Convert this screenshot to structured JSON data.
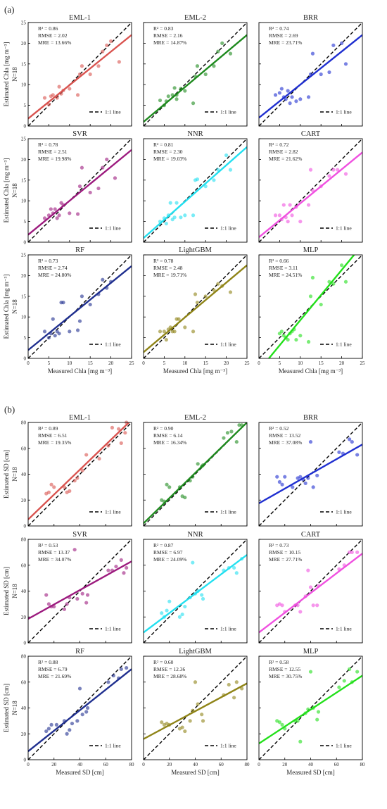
{
  "figure": {
    "panel_a_label": "(a)",
    "panel_b_label": "(b)",
    "n_label": "N=18",
    "legend_label": "1:1 line"
  },
  "panels": [
    {
      "id": "a",
      "xlabel": "Measured Chla [mg m⁻³]",
      "ylabel": "Estimated Chla [mg m⁻³]",
      "xlim": [
        0,
        25
      ],
      "ylim": [
        0,
        25
      ],
      "ticks": [
        0,
        5,
        10,
        15,
        20,
        25
      ]
    },
    {
      "id": "b",
      "xlabel": "Measured SD [cm]",
      "ylabel": "Estimated SD [cm]",
      "xlim": [
        0,
        80
      ],
      "ylim": [
        0,
        80
      ],
      "ticks": [
        0,
        20,
        40,
        60,
        80
      ]
    }
  ],
  "chart_data": [
    {
      "panel": "a",
      "type": "scatter",
      "title": "EML-1",
      "color": "#d9534f",
      "stats": [
        "R² = 0.86",
        "RMSE = 2.02",
        "MRE = 13.66%"
      ],
      "fit": [
        [
          0,
          1.8
        ],
        [
          25,
          22.0
        ]
      ],
      "x": [
        4,
        5,
        5.5,
        6,
        7,
        7.5,
        8,
        8.5,
        10,
        12,
        12.5,
        13,
        15,
        17,
        18,
        19,
        20,
        22
      ],
      "y": [
        6.8,
        5.2,
        7.2,
        7.5,
        6.8,
        9.5,
        7.8,
        8.6,
        9.0,
        7.5,
        12.5,
        14.5,
        12.5,
        14.5,
        18.0,
        19.5,
        20.5,
        15.5
      ]
    },
    {
      "panel": "a",
      "type": "scatter",
      "title": "EML-2",
      "color": "#1e8a1e",
      "stats": [
        "R² = 0.83",
        "RMSE = 2.16",
        "MRE = 14.87%"
      ],
      "fit": [
        [
          0,
          1.0
        ],
        [
          25,
          22.0
        ]
      ],
      "x": [
        4,
        5,
        5.5,
        6,
        7,
        7.5,
        8,
        8,
        9,
        10,
        12,
        12.5,
        13,
        15,
        17,
        18,
        19,
        21
      ],
      "y": [
        6.2,
        5.0,
        6.0,
        7.2,
        7.5,
        9.2,
        7.5,
        6.5,
        9.0,
        8.5,
        5.5,
        12.0,
        14.5,
        12.5,
        14.5,
        18.0,
        20.0,
        17.5
      ]
    },
    {
      "panel": "a",
      "type": "scatter",
      "title": "BRR",
      "color": "#1f2fd0",
      "stats": [
        "R² = 0.74",
        "RMSE = 2.69",
        "MRE = 23.71%"
      ],
      "fit": [
        [
          0,
          2.0
        ],
        [
          25,
          22.0
        ]
      ],
      "x": [
        4,
        5,
        5.5,
        6,
        6.5,
        7,
        7.5,
        8,
        9,
        10,
        12,
        12.5,
        13,
        15,
        17,
        18,
        20,
        21
      ],
      "y": [
        7.5,
        8.0,
        9.0,
        7.0,
        6.5,
        8.5,
        5.5,
        7.0,
        6.0,
        6.5,
        7.0,
        12.5,
        17.5,
        12.5,
        13.0,
        19.5,
        20.0,
        15.0
      ]
    },
    {
      "panel": "a",
      "type": "scatter",
      "title": "SVR",
      "color": "#9c1a7e",
      "stats": [
        "R² = 0.78",
        "RMSE = 2.51",
        "MRE = 19.98%"
      ],
      "fit": [
        [
          0,
          1.8
        ],
        [
          25,
          22.3
        ]
      ],
      "x": [
        4,
        5,
        5.5,
        6,
        6.5,
        7,
        7.5,
        8,
        8.5,
        10,
        12,
        12.5,
        13,
        15,
        17,
        18,
        19,
        21
      ],
      "y": [
        5.8,
        6.5,
        8.0,
        7.0,
        8.0,
        5.8,
        6.5,
        9.5,
        9.0,
        7.0,
        6.8,
        13.5,
        18.0,
        12.0,
        13.0,
        18.0,
        20.0,
        15.5
      ]
    },
    {
      "panel": "a",
      "type": "scatter",
      "title": "NNR",
      "color": "#22e0f0",
      "stats": [
        "R² = 0.81",
        "RMSE = 2.30",
        "MRE = 19.03%"
      ],
      "fit": [
        [
          0,
          1.0
        ],
        [
          25,
          23.0
        ]
      ],
      "x": [
        4,
        5,
        5.5,
        6,
        6.5,
        7,
        7.5,
        8,
        9,
        10,
        12,
        12.5,
        13,
        15,
        17,
        18,
        20,
        21
      ],
      "y": [
        5.0,
        5.8,
        4.5,
        6.5,
        9.5,
        5.5,
        6.0,
        9.5,
        6.0,
        6.5,
        6.5,
        15.0,
        15.2,
        13.5,
        15.0,
        17.5,
        21.0,
        17.5
      ]
    },
    {
      "panel": "a",
      "type": "scatter",
      "title": "CART",
      "color": "#f050e0",
      "stats": [
        "R² = 0.72",
        "RMSE = 2.82",
        "MRE = 21.62%"
      ],
      "fit": [
        [
          0,
          1.2
        ],
        [
          25,
          21.7
        ]
      ],
      "x": [
        4,
        5,
        5.5,
        6,
        6.5,
        7,
        7.5,
        8,
        9,
        10,
        12,
        12.5,
        13,
        15,
        17,
        18,
        19,
        21
      ],
      "y": [
        6.5,
        6.5,
        5.5,
        9.0,
        6.0,
        5.0,
        9.0,
        6.5,
        8.5,
        5.0,
        9.0,
        17.5,
        12.5,
        13.5,
        16.0,
        17.5,
        17.5,
        16.5
      ]
    },
    {
      "panel": "a",
      "type": "scatter",
      "title": "RF",
      "color": "#1f2f8f",
      "stats": [
        "R² = 0.73",
        "RMSE = 2.74",
        "MRE = 24.80%"
      ],
      "fit": [
        [
          0,
          2.0
        ],
        [
          25,
          22.3
        ]
      ],
      "x": [
        4,
        5,
        5.5,
        6,
        6.5,
        7,
        7.5,
        8,
        8.5,
        10,
        12,
        12.5,
        13,
        15,
        17,
        18,
        19,
        20
      ],
      "y": [
        6.5,
        5.0,
        6.0,
        9.5,
        5.5,
        6.5,
        6.0,
        13.5,
        13.5,
        6.5,
        6.8,
        9.0,
        15.0,
        13.0,
        15.5,
        19.0,
        17.0,
        18.5
      ]
    },
    {
      "panel": "a",
      "type": "scatter",
      "title": "LightGBM",
      "color": "#8f8417",
      "stats": [
        "R² = 0.78",
        "RMSE = 2.48",
        "MRE = 19.71%"
      ],
      "fit": [
        [
          0,
          1.5
        ],
        [
          25,
          22.5
        ]
      ],
      "x": [
        4,
        5,
        5.5,
        6,
        6.5,
        7,
        7.5,
        8,
        8.5,
        10,
        12,
        12.5,
        13,
        15,
        17,
        18,
        19,
        21
      ],
      "y": [
        6.5,
        6.5,
        4.5,
        7.0,
        7.5,
        6.5,
        6.5,
        9.5,
        9.5,
        7.5,
        6.5,
        15.5,
        13.5,
        15.0,
        16.5,
        18.0,
        17.5,
        16.0
      ]
    },
    {
      "panel": "a",
      "type": "scatter",
      "title": "MLP",
      "color": "#22e01a",
      "stats": [
        "R² = 0.66",
        "RMSE = 3.11",
        "MRE = 24.51%"
      ],
      "fit": [
        [
          2.4,
          0
        ],
        [
          23.0,
          25
        ]
      ],
      "x": [
        5,
        5.5,
        6,
        6.5,
        7,
        7.5,
        8,
        8.5,
        9,
        10,
        12,
        12.5,
        13,
        15,
        17,
        18,
        20,
        21
      ],
      "y": [
        6.0,
        6.5,
        5.5,
        5.0,
        4.5,
        6.0,
        6.5,
        7.0,
        4.5,
        5.5,
        4.0,
        15.0,
        19.5,
        13.0,
        18.5,
        18.0,
        22.5,
        18.5
      ]
    },
    {
      "panel": "b",
      "type": "scatter",
      "title": "EML-1",
      "color": "#d9534f",
      "stats": [
        "R² = 0.89",
        "RMSE = 6.51",
        "MRE = 19.35%"
      ],
      "fit": [
        [
          0,
          5.0
        ],
        [
          80,
          82.0
        ]
      ],
      "x": [
        14,
        16,
        18,
        20,
        28,
        30,
        32,
        36,
        38,
        42,
        45,
        55,
        62,
        65,
        70,
        72,
        75,
        76
      ],
      "y": [
        25,
        26,
        32,
        30,
        30,
        26,
        27,
        35,
        37,
        43,
        55,
        52,
        62,
        76,
        75,
        64,
        72,
        80
      ]
    },
    {
      "panel": "b",
      "type": "scatter",
      "title": "EML-2",
      "color": "#1e8a1e",
      "stats": [
        "R² = 0.90",
        "RMSE = 6.14",
        "MRE = 16.34%"
      ],
      "fit": [
        [
          0,
          2.0
        ],
        [
          80,
          80.0
        ]
      ],
      "x": [
        14,
        16,
        18,
        20,
        28,
        30,
        32,
        36,
        38,
        42,
        45,
        46,
        62,
        65,
        68,
        72,
        74,
        76
      ],
      "y": [
        20,
        19,
        32,
        30,
        30,
        23,
        22,
        35,
        38,
        48,
        46,
        47,
        68,
        72,
        73,
        65,
        78,
        78
      ]
    },
    {
      "panel": "b",
      "type": "scatter",
      "title": "BRR",
      "color": "#1f2fd0",
      "stats": [
        "R² = 0.52",
        "RMSE = 13.52",
        "MRE = 37.08%"
      ],
      "fit": [
        [
          0,
          17.5
        ],
        [
          80,
          63.0
        ]
      ],
      "x": [
        14,
        16,
        18,
        20,
        26,
        30,
        32,
        34,
        36,
        38,
        40,
        42,
        45,
        62,
        65,
        70,
        72,
        76
      ],
      "y": [
        38,
        34,
        32,
        38,
        30,
        37,
        38,
        36,
        33,
        37,
        65,
        30,
        39,
        57,
        56,
        67,
        65,
        55
      ]
    },
    {
      "panel": "b",
      "type": "scatter",
      "title": "SVR",
      "color": "#9c1a7e",
      "stats": [
        "R² = 0.53",
        "RMSE = 13.37",
        "MRE = 34.07%"
      ],
      "fit": [
        [
          0,
          18.5
        ],
        [
          80,
          63.0
        ]
      ],
      "x": [
        14,
        16,
        18,
        20,
        28,
        30,
        32,
        36,
        38,
        42,
        45,
        46,
        62,
        65,
        68,
        72,
        74,
        76
      ],
      "y": [
        37,
        30,
        28,
        28,
        26,
        30,
        35,
        72,
        34,
        38,
        31,
        37,
        56,
        56,
        59,
        64,
        54,
        58
      ]
    },
    {
      "panel": "b",
      "type": "scatter",
      "title": "NNR",
      "color": "#22e0f0",
      "stats": [
        "R² = 0.87",
        "RMSE = 6.97",
        "MRE = 24.09%"
      ],
      "fit": [
        [
          0,
          8.0
        ],
        [
          80,
          68.0
        ]
      ],
      "x": [
        14,
        16,
        18,
        20,
        28,
        30,
        32,
        36,
        38,
        40,
        42,
        45,
        46,
        62,
        66,
        70,
        72,
        76
      ],
      "y": [
        23,
        20,
        25,
        32,
        20,
        22,
        28,
        35,
        62,
        38,
        40,
        37,
        34,
        56,
        58,
        58,
        54,
        65
      ]
    },
    {
      "panel": "b",
      "type": "scatter",
      "title": "CART",
      "color": "#f050e0",
      "stats": [
        "R² = 0.73",
        "RMSE = 10.15",
        "MRE = 27.71%"
      ],
      "fit": [
        [
          0,
          8.0
        ],
        [
          80,
          69.0
        ]
      ],
      "x": [
        14,
        16,
        18,
        20,
        28,
        30,
        32,
        36,
        38,
        40,
        42,
        45,
        46,
        62,
        66,
        70,
        72,
        76
      ],
      "y": [
        29,
        30,
        29,
        24,
        29,
        29,
        24,
        36,
        56,
        43,
        29,
        29,
        44,
        57,
        60,
        70,
        70,
        70
      ]
    },
    {
      "panel": "b",
      "type": "scatter",
      "title": "RF",
      "color": "#1f2f8f",
      "stats": [
        "R² = 0.88",
        "RMSE = 6.79",
        "MRE = 21.69%"
      ],
      "fit": [
        [
          0,
          6.5
        ],
        [
          80,
          70.0
        ]
      ],
      "x": [
        14,
        16,
        18,
        22,
        28,
        30,
        32,
        34,
        38,
        40,
        42,
        45,
        46,
        62,
        66,
        70,
        72,
        76
      ],
      "y": [
        22,
        24,
        27,
        27,
        30,
        20,
        23,
        28,
        30,
        55,
        35,
        37,
        40,
        60,
        65,
        63,
        70,
        71
      ]
    },
    {
      "panel": "b",
      "type": "scatter",
      "title": "LightGBM",
      "color": "#8f8417",
      "stats": [
        "R² = 0.60",
        "RMSE = 12.36",
        "MRE = 28.68%"
      ],
      "fit": [
        [
          0,
          16.0
        ],
        [
          80,
          59.0
        ]
      ],
      "x": [
        14,
        16,
        18,
        20,
        28,
        30,
        32,
        36,
        38,
        40,
        42,
        45,
        46,
        62,
        66,
        70,
        72,
        76
      ],
      "y": [
        29,
        27,
        28,
        27,
        24,
        25,
        22,
        30,
        38,
        60,
        43,
        35,
        30,
        50,
        58,
        48,
        60,
        55
      ]
    },
    {
      "panel": "b",
      "type": "scatter",
      "title": "MLP",
      "color": "#22e01a",
      "stats": [
        "R² = 0.58",
        "RMSE = 12.55",
        "MRE = 30.75%"
      ],
      "fit": [
        [
          0,
          12.5
        ],
        [
          80,
          65.0
        ]
      ],
      "x": [
        14,
        16,
        18,
        20,
        28,
        30,
        32,
        36,
        38,
        40,
        42,
        45,
        46,
        62,
        66,
        70,
        72,
        76
      ],
      "y": [
        30,
        29,
        27,
        24,
        30,
        30,
        14,
        36,
        39,
        68,
        40,
        31,
        37,
        56,
        61,
        70,
        60,
        68
      ]
    }
  ]
}
